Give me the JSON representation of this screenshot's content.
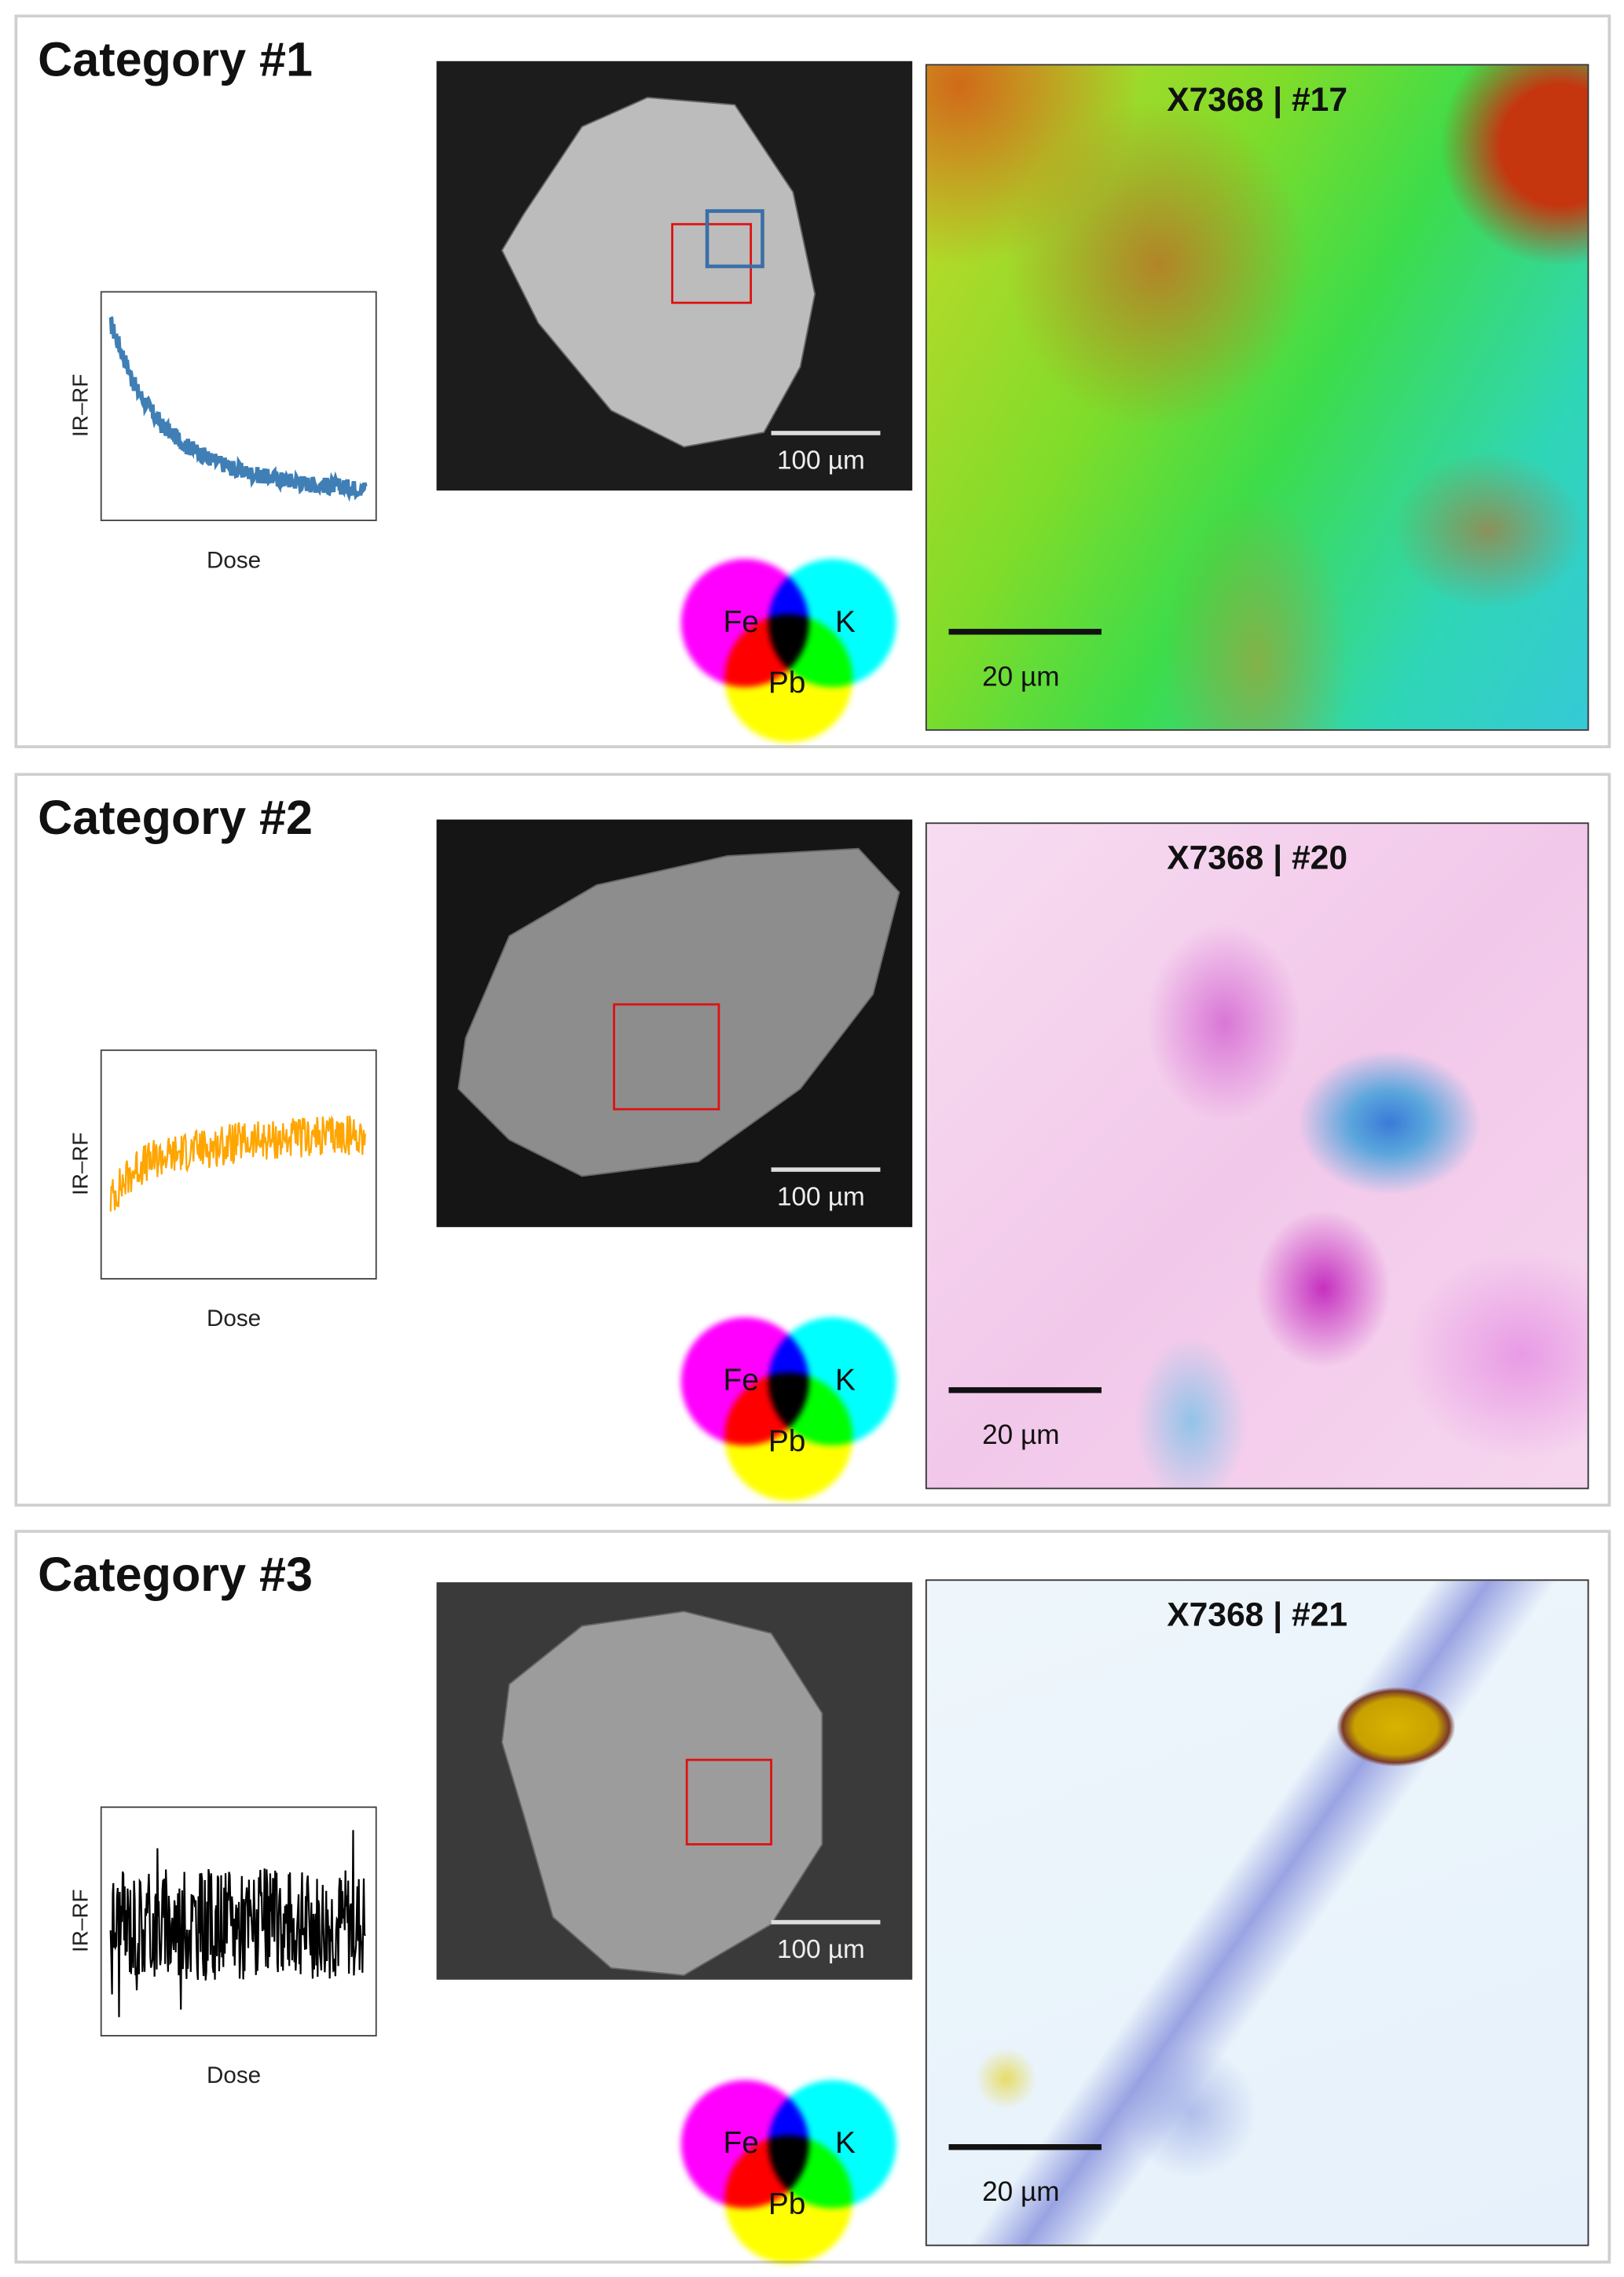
{
  "panels": [
    {
      "title": "Category #1",
      "ylabel": "IR–RF",
      "xlabel": "Dose",
      "sem_scale": "100 µm",
      "map_title": "X7368 | #17",
      "map_scale": "20 µm",
      "venn": {
        "a": "Fe",
        "b": "K",
        "c": "Pb"
      },
      "series_color": "#3f7fb5"
    },
    {
      "title": "Category #2",
      "ylabel": "IR–RF",
      "xlabel": "Dose",
      "sem_scale": "100 µm",
      "map_title": "X7368 | #20",
      "map_scale": "20 µm",
      "venn": {
        "a": "Fe",
        "b": "K",
        "c": "Pb"
      },
      "series_color": "#ffa500"
    },
    {
      "title": "Category #3",
      "ylabel": "IR–RF",
      "xlabel": "Dose",
      "sem_scale": "100 µm",
      "map_title": "X7368 | #21",
      "map_scale": "20 µm",
      "venn": {
        "a": "Fe",
        "b": "K",
        "c": "Pb"
      },
      "series_color": "#000000"
    }
  ],
  "chart_data": [
    {
      "type": "line",
      "title": "Category #1",
      "xlabel": "Dose",
      "ylabel": "IR–RF",
      "trend": "decay",
      "x": [
        0,
        0.1,
        0.2,
        0.3,
        0.4,
        0.5,
        0.6,
        0.7,
        0.8,
        0.9,
        1
      ],
      "values": [
        0.92,
        0.6,
        0.42,
        0.32,
        0.25,
        0.2,
        0.17,
        0.15,
        0.13,
        0.12,
        0.11
      ]
    },
    {
      "type": "line",
      "title": "Category #2",
      "xlabel": "Dose",
      "ylabel": "IR–RF",
      "trend": "rising",
      "x": [
        0,
        0.1,
        0.2,
        0.3,
        0.4,
        0.5,
        0.6,
        0.7,
        0.8,
        0.9,
        1
      ],
      "values": [
        0.35,
        0.5,
        0.55,
        0.58,
        0.6,
        0.62,
        0.63,
        0.64,
        0.65,
        0.66,
        0.66
      ]
    },
    {
      "type": "line",
      "title": "Category #3",
      "xlabel": "Dose",
      "ylabel": "IR–RF",
      "trend": "flat noise",
      "x": [
        0,
        0.1,
        0.2,
        0.3,
        0.4,
        0.5,
        0.6,
        0.7,
        0.8,
        0.9,
        1
      ],
      "values": [
        0.5,
        0.5,
        0.5,
        0.5,
        0.5,
        0.5,
        0.5,
        0.5,
        0.5,
        0.5,
        0.5
      ]
    }
  ]
}
